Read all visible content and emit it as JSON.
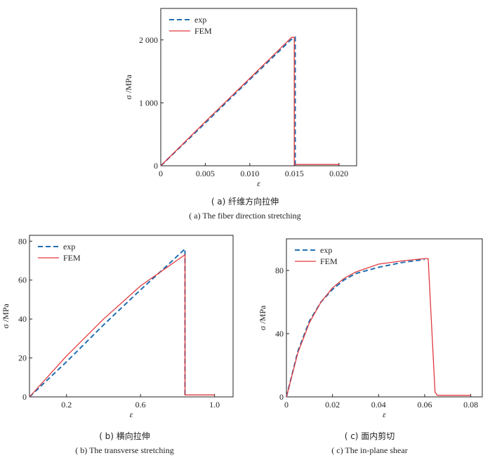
{
  "chart_data": [
    {
      "type": "line",
      "ylabel": "σ /MPa",
      "xlabel": "ε",
      "xlim": [
        0,
        0.022
      ],
      "ylim": [
        0,
        2500
      ],
      "xticks": [
        {
          "v": 0,
          "label": "0"
        },
        {
          "v": 0.005,
          "label": "0.005"
        },
        {
          "v": 0.01,
          "label": "0.010"
        },
        {
          "v": 0.015,
          "label": "0.015"
        },
        {
          "v": 0.02,
          "label": "0.020"
        }
      ],
      "yticks": [
        {
          "v": 0,
          "label": "0"
        },
        {
          "v": 1000,
          "label": "1 000"
        },
        {
          "v": 2000,
          "label": "2 000"
        }
      ],
      "legend": "top-left",
      "series": [
        {
          "name": "exp",
          "style": "dashed",
          "color": "#1f6fb2",
          "x": [
            0,
            0.005,
            0.01,
            0.0146,
            0.0151,
            0.0151,
            0.0154
          ],
          "y": [
            0,
            680,
            1370,
            2000,
            2040,
            20,
            20
          ]
        },
        {
          "name": "FEM",
          "style": "solid",
          "color": "#e0393e",
          "x": [
            0,
            0.005,
            0.01,
            0.0147,
            0.015,
            0.015,
            0.0201
          ],
          "y": [
            0,
            700,
            1390,
            2040,
            2040,
            20,
            20
          ]
        }
      ],
      "caption_cn": "( a) 纤维方向拉伸",
      "caption_en": "( a) The fiber direction stretching"
    },
    {
      "type": "line",
      "ylabel": "σ /MPa",
      "xlabel": "ε",
      "xlim": [
        0,
        1.1
      ],
      "ylim": [
        0,
        83
      ],
      "xticks": [
        {
          "v": 0.2,
          "label": "0.2"
        },
        {
          "v": 0.6,
          "label": "0.6"
        },
        {
          "v": 1.0,
          "label": "1.0"
        }
      ],
      "yticks": [
        {
          "v": 0,
          "label": "0"
        },
        {
          "v": 20,
          "label": "20"
        },
        {
          "v": 40,
          "label": "40"
        },
        {
          "v": 60,
          "label": "60"
        },
        {
          "v": 80,
          "label": "80"
        }
      ],
      "legend": "top-left",
      "series": [
        {
          "name": "exp",
          "style": "dashed",
          "color": "#1f6fb2",
          "x": [
            0,
            0.2,
            0.4,
            0.6,
            0.75,
            0.84,
            0.84,
            0.85
          ],
          "y": [
            0,
            18,
            37,
            55,
            68,
            76,
            1,
            1
          ]
        },
        {
          "name": "FEM",
          "style": "solid",
          "color": "#e0393e",
          "x": [
            0,
            0.2,
            0.4,
            0.6,
            0.75,
            0.84,
            0.84,
            1.0
          ],
          "y": [
            0,
            21,
            40,
            57,
            67,
            73,
            1,
            1
          ]
        }
      ],
      "caption_cn": "( b) 横向拉伸",
      "caption_en": "( b) The transverse stretching"
    },
    {
      "type": "line",
      "ylabel": "σ /MPa",
      "xlabel": "ε",
      "xlim": [
        0,
        0.085
      ],
      "ylim": [
        0,
        100
      ],
      "xticks": [
        {
          "v": 0,
          "label": "0"
        },
        {
          "v": 0.02,
          "label": "0.02"
        },
        {
          "v": 0.04,
          "label": "0.04"
        },
        {
          "v": 0.06,
          "label": "0.06"
        },
        {
          "v": 0.08,
          "label": "0.08"
        }
      ],
      "yticks": [
        {
          "v": 0,
          "label": "0"
        },
        {
          "v": 40,
          "label": "40"
        },
        {
          "v": 80,
          "label": "80"
        }
      ],
      "legend": "top-left",
      "series": [
        {
          "name": "exp",
          "style": "dashed",
          "color": "#1f6fb2",
          "x": [
            0,
            0.005,
            0.01,
            0.015,
            0.02,
            0.025,
            0.03,
            0.04,
            0.05,
            0.06
          ],
          "y": [
            0,
            29,
            48,
            60,
            68,
            74,
            78,
            82,
            85,
            87
          ]
        },
        {
          "name": "FEM",
          "style": "solid",
          "color": "#e0393e",
          "x": [
            0,
            0.005,
            0.01,
            0.015,
            0.02,
            0.025,
            0.03,
            0.04,
            0.05,
            0.06,
            0.0615,
            0.0645,
            0.0655,
            0.08
          ],
          "y": [
            0,
            28,
            47,
            60,
            69,
            75,
            79,
            84,
            86,
            87.5,
            87.5,
            3,
            1,
            1
          ]
        }
      ],
      "caption_cn": "( c) 面内剪切",
      "caption_en": "( c) The in-plane shear"
    }
  ]
}
